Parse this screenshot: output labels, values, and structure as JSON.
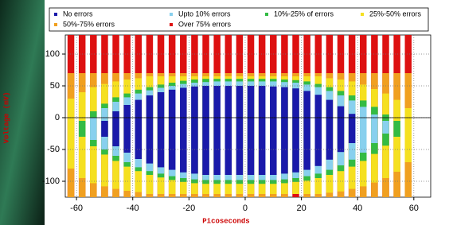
{
  "chart_data": {
    "type": "shmoo",
    "x_label": "Picoseconds",
    "y_label": "Voltage (mV)",
    "xlim": [
      -64,
      66
    ],
    "ylim": [
      -125,
      130
    ],
    "xticks": [
      -60,
      -40,
      -20,
      0,
      20,
      40,
      60
    ],
    "yticks": [
      -100,
      -50,
      0,
      50,
      100
    ],
    "grid": true,
    "x": [
      -62,
      -58,
      -54,
      -50,
      -46,
      -42,
      -38,
      -34,
      -30,
      -26,
      -22,
      -18,
      -14,
      -10,
      -6,
      -2,
      2,
      6,
      10,
      14,
      18,
      22,
      26,
      30,
      34,
      38,
      42,
      46,
      50,
      54,
      58
    ],
    "series": [
      {
        "name": "Over 75% errors",
        "color": "#dd1111",
        "upper": [
          130,
          130,
          130,
          130,
          130,
          130,
          130,
          130,
          130,
          130,
          130,
          130,
          130,
          130,
          130,
          130,
          130,
          130,
          130,
          130,
          130,
          130,
          130,
          130,
          130,
          130,
          130,
          130,
          130,
          130,
          130
        ],
        "lower": [
          -125,
          -125,
          -125,
          -125,
          -125,
          -125,
          -125,
          -125,
          -125,
          -125,
          -125,
          -125,
          -125,
          -125,
          -125,
          -125,
          -125,
          -125,
          -125,
          -125,
          -125,
          -125,
          -125,
          -125,
          -125,
          -125,
          -125,
          -125,
          -125,
          -125,
          -125
        ]
      },
      {
        "name": "50%-75% errors",
        "color": "#f0a020",
        "upper": [
          70,
          70,
          70,
          70,
          70,
          70,
          70,
          70,
          70,
          70,
          70,
          70,
          70,
          70,
          70,
          70,
          70,
          70,
          70,
          70,
          70,
          70,
          70,
          70,
          70,
          70,
          70,
          70,
          70,
          70,
          70
        ],
        "lower": [
          -125,
          -125,
          -125,
          -125,
          -125,
          -125,
          -125,
          -125,
          -125,
          -125,
          -125,
          -125,
          -125,
          -125,
          -125,
          -125,
          -125,
          -125,
          -125,
          -125,
          -120,
          -125,
          -125,
          -125,
          -125,
          -125,
          -125,
          -125,
          -125,
          -125,
          -125
        ]
      },
      {
        "name": "25%-50% errors",
        "color": "#f5e020",
        "upper": [
          30,
          40,
          48,
          53,
          57,
          60,
          62,
          65,
          65,
          65,
          65,
          65,
          65,
          65,
          65,
          65,
          65,
          65,
          65,
          65,
          65,
          65,
          65,
          62,
          60,
          57,
          52,
          45,
          38,
          28,
          15
        ],
        "lower": [
          -80,
          -95,
          -103,
          -108,
          -112,
          -115,
          -117,
          -120,
          -120,
          -120,
          -120,
          -120,
          -120,
          -120,
          -120,
          -120,
          -120,
          -120,
          -120,
          -120,
          -120,
          -120,
          -120,
          -118,
          -116,
          -112,
          -108,
          -102,
          -95,
          -85,
          -70
        ]
      },
      {
        "name": "10%-25% of errors",
        "color": "#33bb44",
        "upper": [
          null,
          -5,
          10,
          22,
          32,
          38,
          44,
          48,
          52,
          55,
          58,
          60,
          61,
          61,
          61,
          61,
          61,
          61,
          61,
          60,
          59,
          57,
          53,
          48,
          42,
          35,
          27,
          17,
          5,
          -5,
          null
        ],
        "lower": [
          null,
          -30,
          -45,
          -58,
          -68,
          -77,
          -84,
          -90,
          -94,
          -98,
          -101,
          -103,
          -104,
          -104,
          -104,
          -104,
          -104,
          -104,
          -104,
          -103,
          -101,
          -99,
          -95,
          -90,
          -84,
          -77,
          -68,
          -57,
          -44,
          -30,
          null
        ]
      },
      {
        "name": "Upto 10% errors",
        "color": "#88d0ee",
        "upper": [
          null,
          null,
          0,
          15,
          25,
          32,
          38,
          43,
          47,
          50,
          53,
          55,
          56,
          57,
          57,
          57,
          57,
          57,
          57,
          56,
          55,
          52,
          48,
          42,
          35,
          27,
          17,
          5,
          -5,
          null,
          null
        ],
        "lower": [
          null,
          null,
          -35,
          -50,
          -60,
          -70,
          -78,
          -84,
          -88,
          -92,
          -95,
          -97,
          -98,
          -98,
          -98,
          -98,
          -98,
          -98,
          -98,
          -97,
          -95,
          -92,
          -88,
          -82,
          -75,
          -66,
          -55,
          -40,
          -25,
          null,
          null
        ]
      },
      {
        "name": "No errors",
        "color": "#1a1aaa",
        "upper": [
          null,
          null,
          null,
          -5,
          10,
          20,
          28,
          35,
          40,
          44,
          47,
          49,
          50,
          50,
          50,
          50,
          50,
          50,
          49,
          48,
          46,
          42,
          36,
          28,
          18,
          6,
          null,
          null,
          null,
          null,
          null
        ],
        "lower": [
          null,
          null,
          null,
          -30,
          -45,
          -55,
          -65,
          -72,
          -78,
          -82,
          -86,
          -88,
          -90,
          -90,
          -90,
          -90,
          -90,
          -90,
          -90,
          -88,
          -86,
          -82,
          -76,
          -66,
          -54,
          -40,
          null,
          null,
          null,
          null,
          null
        ]
      }
    ]
  }
}
